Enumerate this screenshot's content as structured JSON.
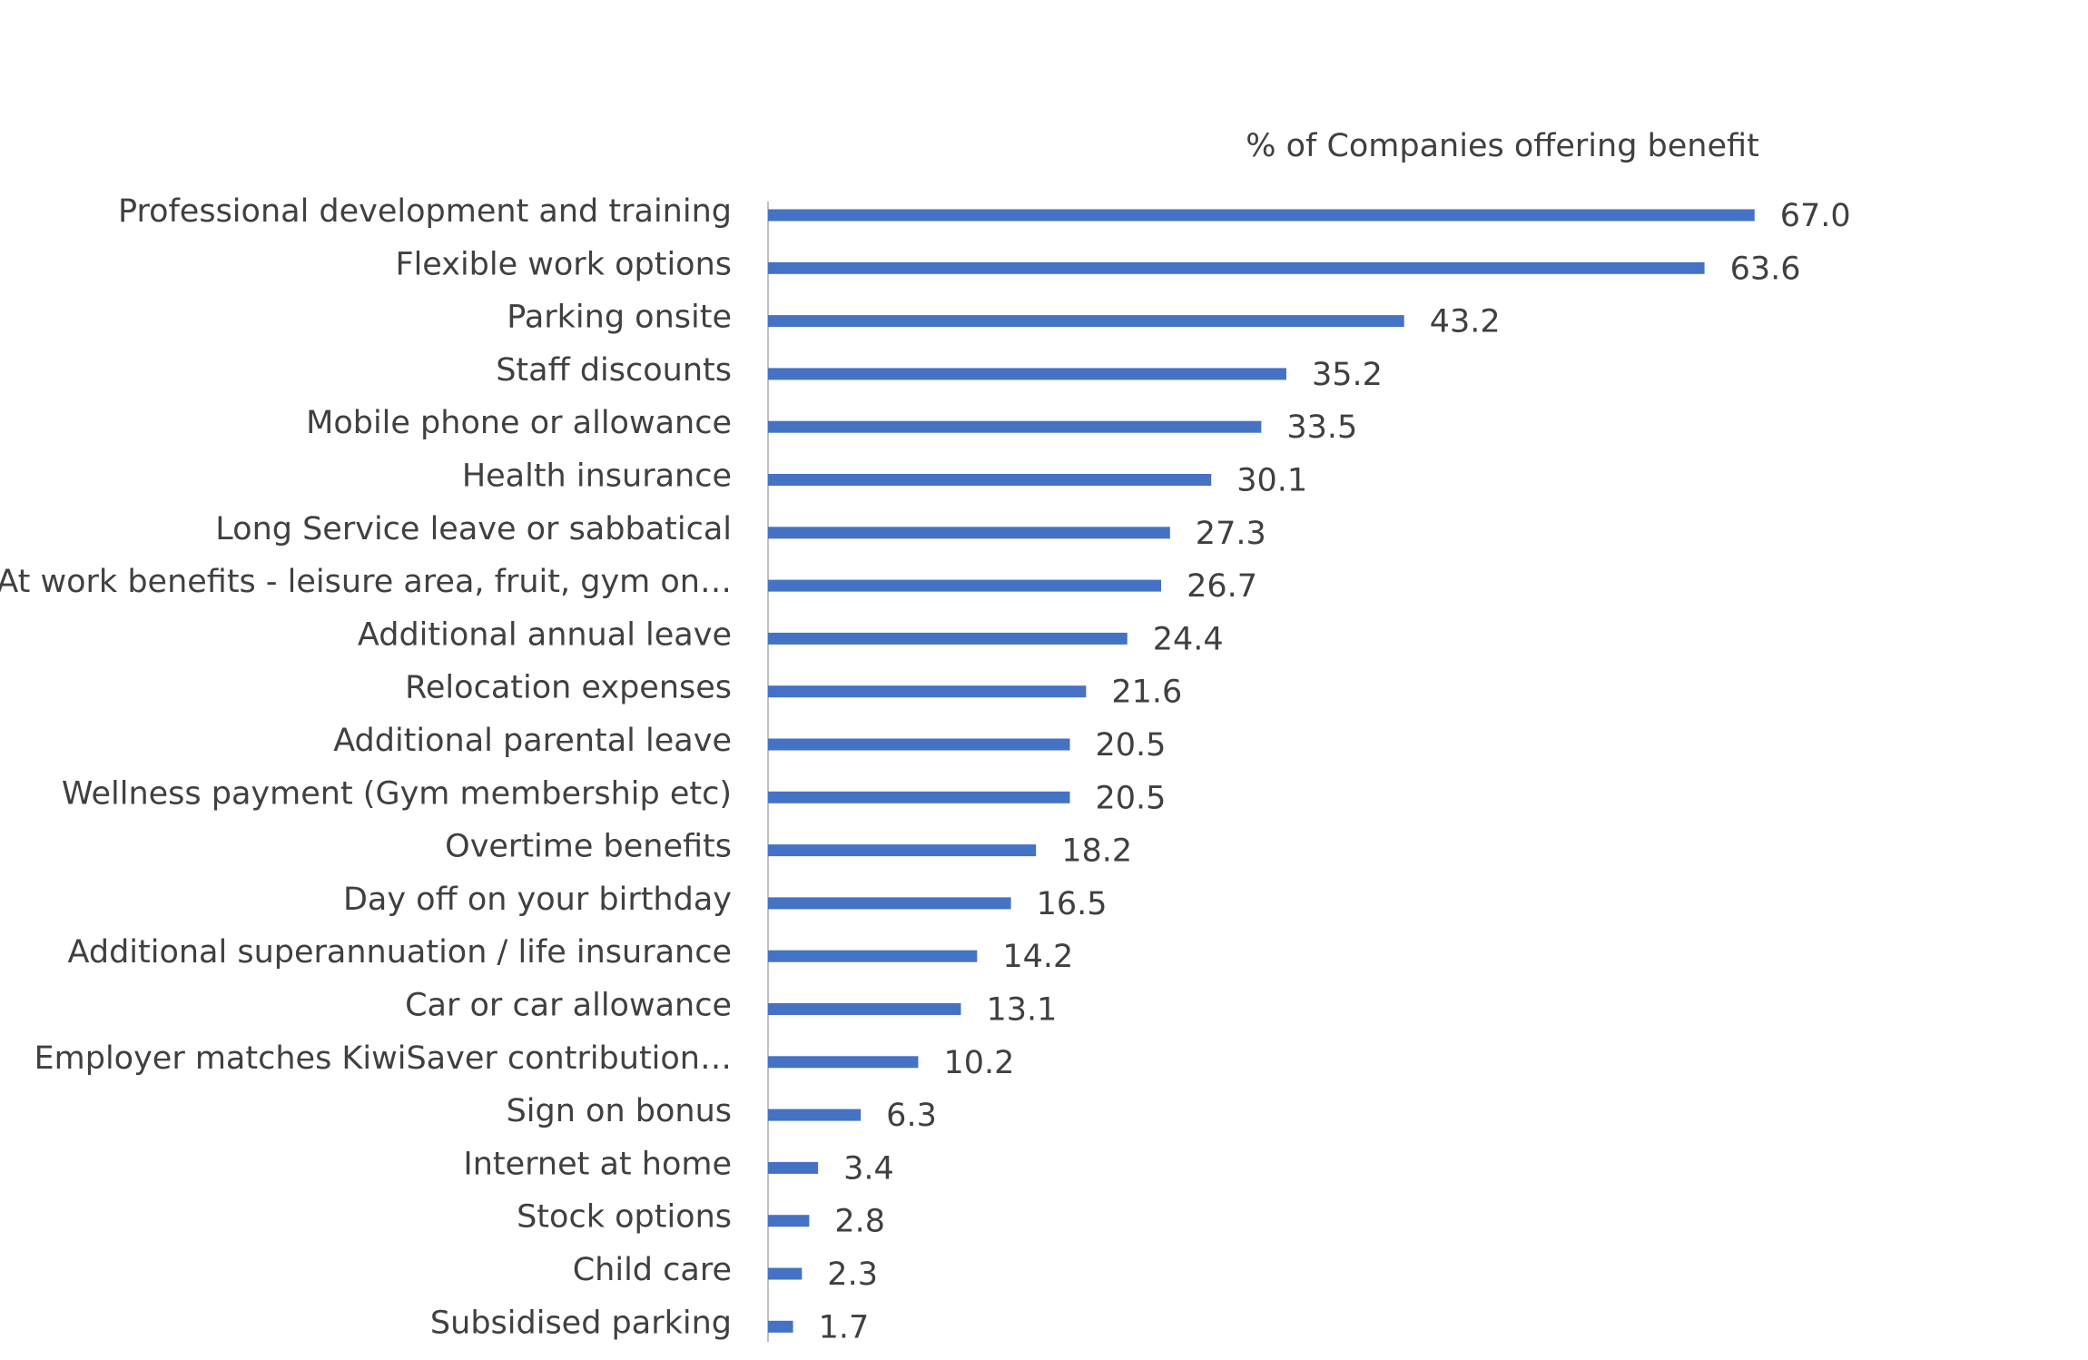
{
  "chart_data": {
    "type": "barh",
    "title": "% of Companies offering benefit",
    "categories": [
      "Professional development and training",
      "Flexible work options",
      "Parking onsite",
      "Staff discounts",
      "Mobile phone or allowance",
      "Health insurance",
      "Long Service leave or sabbatical",
      "At work benefits - leisure area, fruit, gym on…",
      "Additional annual leave",
      "Relocation expenses",
      "Additional parental leave",
      "Wellness payment (Gym membership etc)",
      "Overtime benefits",
      "Day off on your birthday",
      "Additional superannuation / life insurance",
      "Car or car allowance",
      "Employer matches KiwiSaver contribution…",
      "Sign on bonus",
      "Internet at home",
      "Stock options",
      "Child care",
      "Subsidised parking"
    ],
    "values": [
      67,
      63.6,
      43.2,
      35.2,
      33.5,
      30.1,
      27.3,
      26.7,
      24.4,
      21.6,
      20.5,
      20.5,
      18.2,
      16.5,
      14.2,
      13.1,
      10.2,
      6.3,
      3.4,
      2.8,
      2.3,
      1.7
    ],
    "value_labels": [
      "67.0",
      "63.6",
      "43.2",
      "35.2",
      "33.5",
      "30.1",
      "27.3",
      "26.7",
      "24.4",
      "21.6",
      "20.5",
      "20.5",
      "18.2",
      "16.5",
      "14.2",
      "13.1",
      "10.2",
      "6.3",
      "3.4",
      "2.8",
      "2.3",
      "1.7"
    ],
    "color": "#4472c4"
  }
}
